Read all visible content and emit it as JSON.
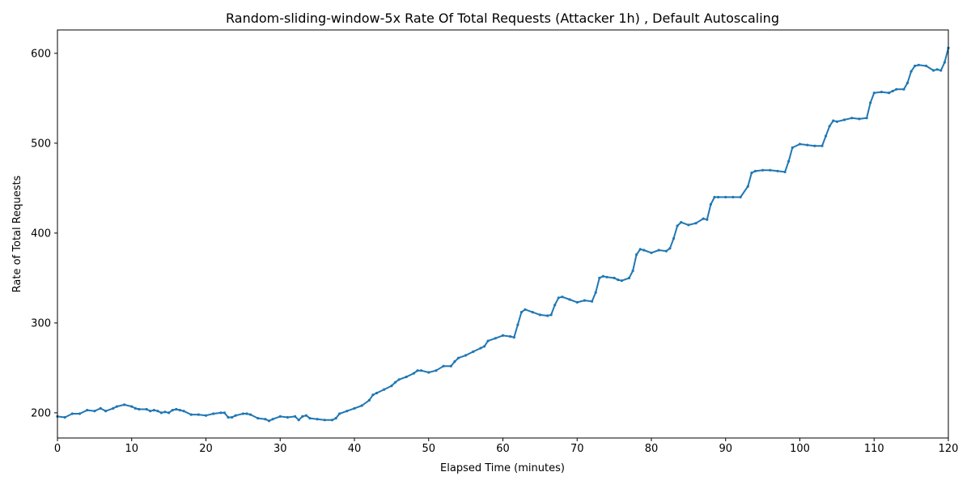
{
  "chart_data": {
    "type": "line",
    "title": "Random-sliding-window-5x Rate Of Total Requests (Attacker 1h) , Default Autoscaling",
    "xlabel": "Elapsed Time (minutes)",
    "ylabel": "Rate of Total Requests",
    "xlim": [
      0,
      120
    ],
    "ylim": [
      172,
      626
    ],
    "x_ticks": [
      0,
      10,
      20,
      30,
      40,
      50,
      60,
      70,
      80,
      90,
      100,
      110,
      120
    ],
    "y_ticks": [
      200,
      300,
      400,
      500,
      600
    ],
    "grid": false,
    "legend": "none",
    "marker": "dot",
    "series": [
      {
        "color": "#1f77b4",
        "x": [
          0,
          1,
          2,
          3,
          4,
          5,
          5.8,
          6.5,
          7.5,
          8,
          9,
          10,
          10.5,
          11,
          12,
          12.5,
          13,
          13.5,
          14,
          14.5,
          15,
          15.5,
          16,
          16.5,
          17,
          18,
          19,
          20,
          21,
          22,
          22.5,
          23,
          23.5,
          24,
          25,
          25.5,
          26,
          27,
          28,
          28.5,
          29,
          30,
          31,
          32,
          32.5,
          33,
          33.5,
          34,
          35,
          36,
          37,
          37.5,
          38,
          39,
          40,
          41,
          42,
          42.5,
          43,
          44,
          45,
          45.5,
          46,
          47,
          48,
          48.5,
          49,
          50,
          51,
          52,
          53,
          53.5,
          54,
          55,
          56,
          57,
          57.5,
          58,
          59,
          60,
          61,
          61.5,
          62,
          62.5,
          63,
          64,
          65,
          66,
          66.5,
          67,
          67.5,
          68,
          69,
          70,
          71,
          72,
          72.5,
          73,
          73.5,
          74,
          75,
          75.5,
          76,
          77,
          77.5,
          78,
          78.5,
          79,
          80,
          81,
          82,
          82.5,
          83,
          83.5,
          84,
          85,
          86,
          87,
          87.5,
          88,
          88.5,
          89,
          90,
          91,
          92,
          93,
          93.5,
          94,
          95,
          96,
          97,
          98,
          98.5,
          99,
          100,
          101,
          102,
          103,
          103.5,
          104,
          104.5,
          105,
          106,
          107,
          108,
          109,
          109.5,
          110,
          111,
          112,
          112.5,
          113,
          114,
          114.5,
          115,
          115.5,
          116,
          117,
          118,
          118.5,
          119,
          119.5,
          120
        ],
        "values": [
          196,
          195,
          199,
          199,
          203,
          202,
          205,
          202,
          205,
          207,
          209,
          207,
          205,
          204,
          204,
          202,
          203,
          202,
          200,
          201,
          200,
          203,
          204,
          203,
          202,
          198,
          198,
          197,
          199,
          200,
          200,
          195,
          195,
          197,
          199,
          199,
          198,
          194,
          193,
          191,
          193,
          196,
          195,
          196,
          192,
          196,
          197,
          194,
          193,
          192,
          192,
          194,
          199,
          202,
          205,
          208,
          214,
          220,
          222,
          226,
          230,
          234,
          237,
          240,
          244,
          247,
          247,
          245,
          247,
          252,
          252,
          257,
          261,
          264,
          268,
          272,
          274,
          280,
          283,
          286,
          285,
          284,
          298,
          312,
          315,
          312,
          309,
          308,
          309,
          320,
          328,
          329,
          326,
          323,
          325,
          324,
          334,
          350,
          352,
          351,
          350,
          348,
          347,
          350,
          358,
          376,
          382,
          381,
          378,
          381,
          380,
          383,
          394,
          408,
          412,
          409,
          411,
          416,
          415,
          432,
          440,
          440,
          440,
          440,
          440,
          452,
          467,
          469,
          470,
          470,
          469,
          468,
          480,
          495,
          499,
          498,
          497,
          497,
          508,
          519,
          525,
          524,
          526,
          528,
          527,
          528,
          545,
          556,
          557,
          556,
          558,
          560,
          560,
          567,
          580,
          586,
          587,
          586,
          581,
          582,
          581,
          590,
          606
        ]
      }
    ]
  }
}
